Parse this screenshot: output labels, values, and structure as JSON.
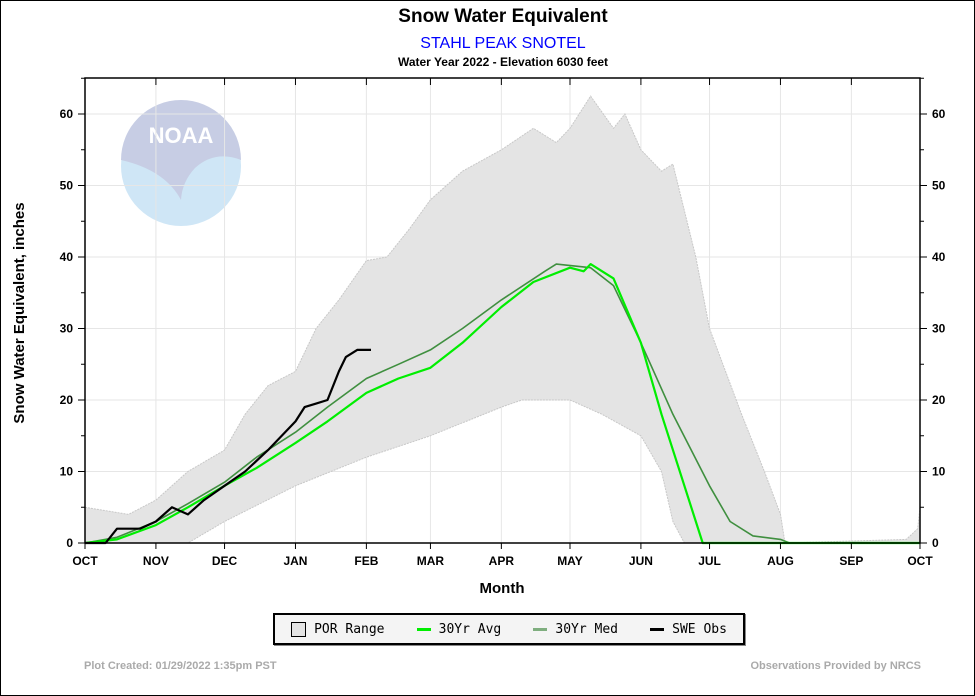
{
  "chart_data": {
    "type": "area",
    "title": "Snow Water Equivalent",
    "subtitle": "STAHL PEAK SNOTEL",
    "subtitle2": "Water Year 2022 -  Elevation 6030 feet",
    "xlabel": "Month",
    "ylabel": "Snow Water Equivalent, inches",
    "xlim": [
      "2021-10-01",
      "2022-10-01"
    ],
    "ylim": [
      0,
      65
    ],
    "y_ticks": [
      0,
      10,
      20,
      30,
      40,
      50,
      60
    ],
    "x_tick_labels": [
      "OCT",
      "NOV",
      "DEC",
      "JAN",
      "FEB",
      "MAR",
      "APR",
      "MAY",
      "JUN",
      "JUL",
      "AUG",
      "SEP",
      "OCT"
    ],
    "x_tick_dates": [
      "2021-10-01",
      "2021-11-01",
      "2021-12-01",
      "2022-01-01",
      "2022-02-01",
      "2022-03-01",
      "2022-04-01",
      "2022-05-01",
      "2022-06-01",
      "2022-07-01",
      "2022-08-01",
      "2022-09-01",
      "2022-10-01"
    ],
    "grid": true,
    "legend_position": "bottom",
    "colors": {
      "por": "#e4e4e4",
      "por_edge": "#c8c8c8",
      "avg": "#00ee00",
      "med": "#3f8f3f",
      "obs": "#000000",
      "subtitle": "#0000ff"
    },
    "series": [
      {
        "name": "POR Range",
        "kind": "range",
        "upper": [
          [
            "2021-10-01",
            5
          ],
          [
            "2021-10-20",
            4
          ],
          [
            "2021-11-01",
            6
          ],
          [
            "2021-11-15",
            10
          ],
          [
            "2021-12-01",
            13
          ],
          [
            "2021-12-10",
            18
          ],
          [
            "2021-12-20",
            22
          ],
          [
            "2022-01-01",
            24
          ],
          [
            "2022-01-10",
            30
          ],
          [
            "2022-01-20",
            34
          ],
          [
            "2022-02-01",
            39.5
          ],
          [
            "2022-02-10",
            40
          ],
          [
            "2022-02-20",
            44
          ],
          [
            "2022-03-01",
            48
          ],
          [
            "2022-03-15",
            52
          ],
          [
            "2022-04-01",
            55
          ],
          [
            "2022-04-15",
            58
          ],
          [
            "2022-04-25",
            56
          ],
          [
            "2022-05-01",
            58
          ],
          [
            "2022-05-10",
            62.5
          ],
          [
            "2022-05-20",
            58
          ],
          [
            "2022-05-25",
            60
          ],
          [
            "2022-06-01",
            55
          ],
          [
            "2022-06-10",
            52
          ],
          [
            "2022-06-15",
            53
          ],
          [
            "2022-06-25",
            40
          ],
          [
            "2022-07-01",
            30
          ],
          [
            "2022-07-15",
            18
          ],
          [
            "2022-07-25",
            10
          ],
          [
            "2022-08-01",
            4
          ],
          [
            "2022-08-03",
            0
          ],
          [
            "2022-09-25",
            0.5
          ],
          [
            "2022-09-30",
            2
          ],
          [
            "2022-10-01",
            5
          ]
        ],
        "lower": [
          [
            "2021-10-01",
            0
          ],
          [
            "2021-11-15",
            0
          ],
          [
            "2021-12-01",
            3
          ],
          [
            "2022-01-01",
            8
          ],
          [
            "2022-02-01",
            12
          ],
          [
            "2022-03-01",
            15
          ],
          [
            "2022-04-01",
            19
          ],
          [
            "2022-04-10",
            20
          ],
          [
            "2022-05-01",
            20
          ],
          [
            "2022-05-15",
            18
          ],
          [
            "2022-06-01",
            15
          ],
          [
            "2022-06-10",
            10
          ],
          [
            "2022-06-15",
            3
          ],
          [
            "2022-06-20",
            0
          ],
          [
            "2022-10-01",
            0
          ]
        ]
      },
      {
        "name": "30Yr Avg",
        "kind": "line",
        "points": [
          [
            "2021-10-01",
            0
          ],
          [
            "2021-10-15",
            0.5
          ],
          [
            "2021-11-01",
            2.5
          ],
          [
            "2021-11-15",
            5
          ],
          [
            "2021-12-01",
            8
          ],
          [
            "2021-12-15",
            10.5
          ],
          [
            "2022-01-01",
            14
          ],
          [
            "2022-01-15",
            17
          ],
          [
            "2022-02-01",
            21
          ],
          [
            "2022-02-15",
            23
          ],
          [
            "2022-03-01",
            24.5
          ],
          [
            "2022-03-15",
            28
          ],
          [
            "2022-04-01",
            33
          ],
          [
            "2022-04-15",
            36.5
          ],
          [
            "2022-05-01",
            38.5
          ],
          [
            "2022-05-07",
            38
          ],
          [
            "2022-05-10",
            39
          ],
          [
            "2022-05-20",
            37
          ],
          [
            "2022-06-01",
            28
          ],
          [
            "2022-06-10",
            18
          ],
          [
            "2022-06-20",
            8
          ],
          [
            "2022-06-28",
            0
          ],
          [
            "2022-10-01",
            0
          ]
        ]
      },
      {
        "name": "30Yr Med",
        "kind": "line",
        "points": [
          [
            "2021-10-01",
            0
          ],
          [
            "2021-10-15",
            0.8
          ],
          [
            "2021-11-01",
            3
          ],
          [
            "2021-11-15",
            5.5
          ],
          [
            "2021-12-01",
            8.5
          ],
          [
            "2021-12-15",
            12
          ],
          [
            "2022-01-01",
            15.5
          ],
          [
            "2022-01-15",
            19
          ],
          [
            "2022-02-01",
            23
          ],
          [
            "2022-02-15",
            25
          ],
          [
            "2022-03-01",
            27
          ],
          [
            "2022-03-15",
            30
          ],
          [
            "2022-04-01",
            34
          ],
          [
            "2022-04-20",
            38
          ],
          [
            "2022-04-25",
            39
          ],
          [
            "2022-05-10",
            38.5
          ],
          [
            "2022-05-20",
            36
          ],
          [
            "2022-06-01",
            28
          ],
          [
            "2022-06-15",
            18
          ],
          [
            "2022-07-01",
            8
          ],
          [
            "2022-07-10",
            3
          ],
          [
            "2022-07-20",
            1
          ],
          [
            "2022-08-01",
            0.5
          ],
          [
            "2022-08-05",
            0
          ],
          [
            "2022-10-01",
            0
          ]
        ]
      },
      {
        "name": "SWE Obs",
        "kind": "line",
        "points": [
          [
            "2021-10-01",
            0
          ],
          [
            "2021-10-10",
            0
          ],
          [
            "2021-10-15",
            2
          ],
          [
            "2021-10-25",
            2
          ],
          [
            "2021-11-01",
            3
          ],
          [
            "2021-11-08",
            5
          ],
          [
            "2021-11-15",
            4
          ],
          [
            "2021-11-22",
            6
          ],
          [
            "2021-12-01",
            8
          ],
          [
            "2021-12-10",
            10
          ],
          [
            "2021-12-20",
            13
          ],
          [
            "2022-01-01",
            17
          ],
          [
            "2022-01-05",
            19
          ],
          [
            "2022-01-10",
            19.5
          ],
          [
            "2022-01-15",
            20
          ],
          [
            "2022-01-20",
            24
          ],
          [
            "2022-01-23",
            26
          ],
          [
            "2022-01-28",
            27
          ],
          [
            "2022-02-03",
            27
          ]
        ]
      }
    ]
  },
  "legend": {
    "items": [
      "POR Range",
      "30Yr Avg",
      "30Yr Med",
      "SWE Obs"
    ]
  },
  "footer": {
    "left": "Plot Created: 01/29/2022 1:35pm PST",
    "right": "Observations Provided by NRCS"
  },
  "logo": {
    "text": "NOAA"
  }
}
